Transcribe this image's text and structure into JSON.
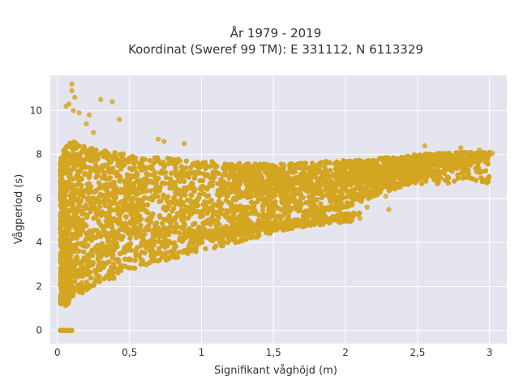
{
  "chart_data": {
    "type": "scatter",
    "title_line1": "År 1979 - 2019",
    "title_line2": "Koordinat (Sweref 99 TM): E 331112, N 6113329",
    "xlabel": "Signifikant våghöjd (m)",
    "ylabel": "Vågperiod (s)",
    "xlim": [
      -0.05,
      3.12
    ],
    "ylim": [
      -0.6,
      11.6
    ],
    "xticks": [
      0,
      0.5,
      1,
      1.5,
      2,
      2.5,
      3
    ],
    "xtick_labels": [
      "0",
      "0,5",
      "1",
      "1,5",
      "2",
      "2,5",
      "3"
    ],
    "yticks": [
      0,
      2,
      4,
      6,
      8,
      10
    ],
    "ytick_labels": [
      "0",
      "2",
      "4",
      "6",
      "8",
      "10"
    ],
    "grid": true,
    "marker_color": "#d4a520",
    "background_color": "#e5e5f0",
    "envelope": {
      "x": [
        0.02,
        0.05,
        0.1,
        0.2,
        0.3,
        0.5,
        0.7,
        1.0,
        1.3,
        1.6,
        1.9,
        2.2,
        2.5,
        2.8,
        3.0
      ],
      "y_low": [
        1.2,
        1.1,
        1.3,
        1.8,
        2.1,
        2.7,
        3.1,
        3.6,
        4.1,
        4.6,
        5.3,
        6.1,
        6.8,
        7.5,
        7.9
      ],
      "y_high": [
        7.8,
        8.3,
        8.6,
        8.4,
        8.2,
        8.0,
        7.9,
        7.7,
        7.6,
        7.6,
        7.7,
        7.8,
        8.0,
        8.1,
        8.1
      ]
    },
    "outliers": {
      "x": [
        0.1,
        0.1,
        0.12,
        0.06,
        0.08,
        0.11,
        0.15,
        0.3,
        0.38,
        0.22,
        0.2,
        0.25,
        0.43,
        0.7,
        0.74,
        0.88,
        1.5,
        1.6,
        1.8,
        2.1,
        2.3,
        2.45,
        2.55,
        2.8,
        2.93,
        3.02,
        1.98,
        2.15,
        2.28
      ],
      "y": [
        11.2,
        10.9,
        10.6,
        10.2,
        10.3,
        10.0,
        9.9,
        10.5,
        10.4,
        9.8,
        9.4,
        9.0,
        9.6,
        8.7,
        8.6,
        8.5,
        5.3,
        4.9,
        5.6,
        5.1,
        5.5,
        7.2,
        8.4,
        8.3,
        8.2,
        8.05,
        6.0,
        5.6,
        6.1
      ]
    },
    "zero_cluster": {
      "x": [
        0.02,
        0.03,
        0.04,
        0.05,
        0.06,
        0.07,
        0.08,
        0.09,
        0.1
      ],
      "y": [
        0,
        0,
        0,
        0,
        0,
        0,
        0,
        0,
        0
      ]
    },
    "bands": [
      {
        "x_start": 0.85,
        "x_end": 2.05,
        "y_start": 4.15,
        "y_end": 5.05
      },
      {
        "x_start": 0.9,
        "x_end": 2.1,
        "y_start": 4.35,
        "y_end": 5.3
      }
    ]
  }
}
